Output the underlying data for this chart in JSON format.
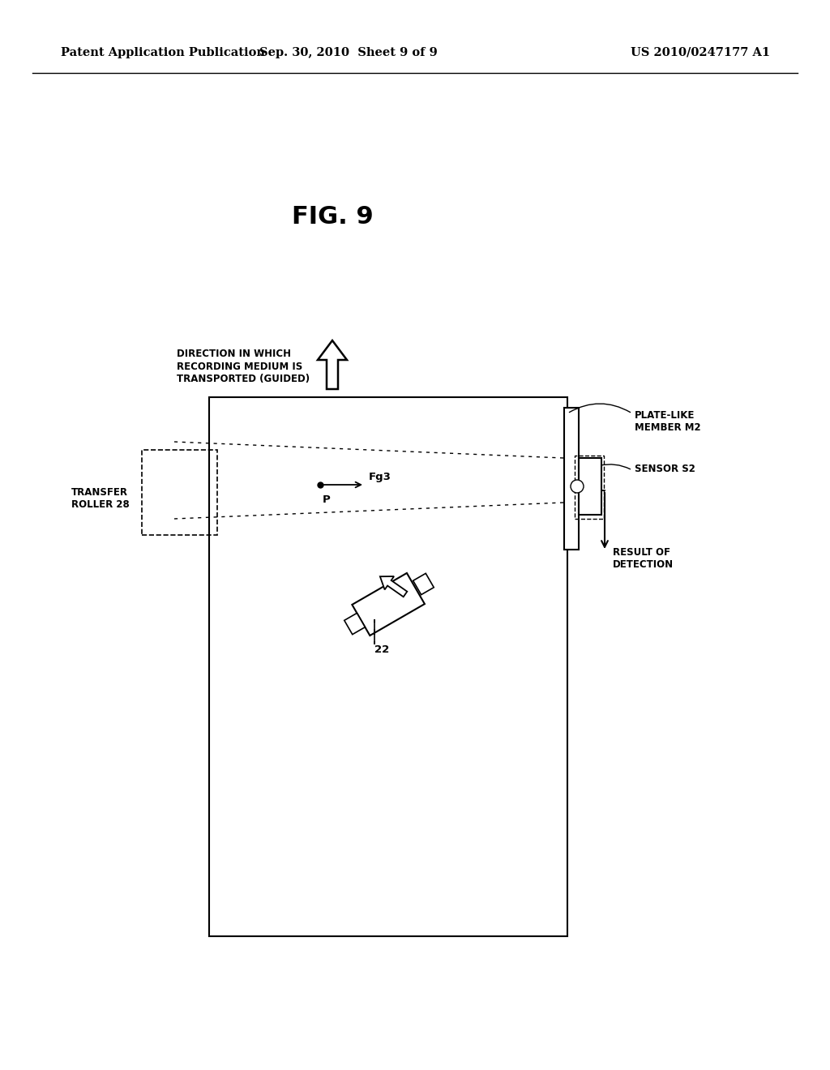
{
  "bg_color": "#ffffff",
  "header_left": "Patent Application Publication",
  "header_mid": "Sep. 30, 2010  Sheet 9 of 9",
  "header_right": "US 2010/0247177 A1",
  "fig_title": "FIG. 9",
  "label_direction": "DIRECTION IN WHICH\nRECORDING MEDIUM IS\nTRANSPORTED (GUIDED)",
  "label_transfer": "TRANSFER\nROLLER 28",
  "label_plate": "PLATE-LIKE\nMEMBER M2",
  "label_sensor": "SENSOR S2",
  "label_result": "RESULT OF\nDETECTION",
  "label_22": "22",
  "label_Fg3": "Fg3",
  "label_P": "P",
  "header_fontsize": 10.5,
  "title_fontsize": 22,
  "diagram_fontsize": 8.5
}
